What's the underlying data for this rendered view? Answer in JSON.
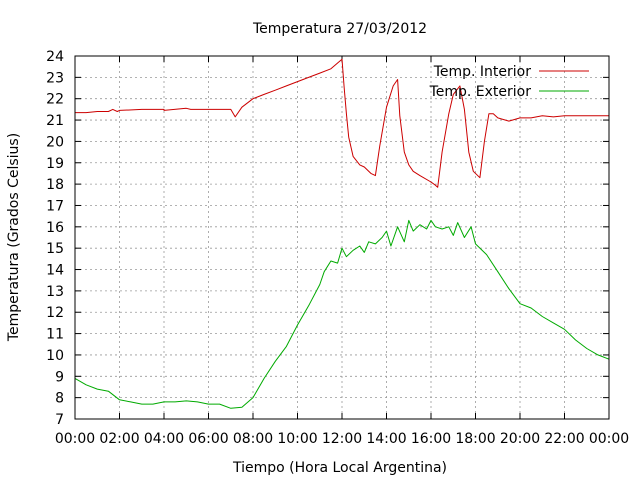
{
  "chart_data": {
    "type": "line",
    "title": "Temperatura 27/03/2012",
    "xlabel": "Tiempo (Hora Local Argentina)",
    "ylabel": "Temperatura (Grados Celsius)",
    "xlim": [
      0,
      24
    ],
    "ylim": [
      7,
      24
    ],
    "grid": true,
    "legend_position": "top-right",
    "x_tick_labels": [
      "00:00",
      "02:00",
      "04:00",
      "06:00",
      "08:00",
      "10:00",
      "12:00",
      "14:00",
      "16:00",
      "18:00",
      "20:00",
      "22:00",
      "00:00"
    ],
    "y_tick_labels": [
      "7",
      "8",
      "9",
      "10",
      "11",
      "12",
      "13",
      "14",
      "15",
      "16",
      "17",
      "18",
      "19",
      "20",
      "21",
      "22",
      "23",
      "24"
    ],
    "series": [
      {
        "name": "Temp. Interior",
        "color": "#cc0000",
        "x": [
          0,
          0.5,
          1,
          1.5,
          1.7,
          1.9,
          2,
          3,
          4,
          4,
          5,
          5.2,
          6,
          6.5,
          7,
          7.2,
          7.5,
          8,
          8.5,
          9,
          9.5,
          10,
          10.5,
          11,
          11.5,
          12,
          12.1,
          12.2,
          12.3,
          12.5,
          12.8,
          13,
          13.3,
          13.5,
          13.7,
          14,
          14.3,
          14.5,
          14.6,
          14.8,
          15,
          15.2,
          15.5,
          16,
          16.2,
          16.3,
          16.5,
          16.8,
          17,
          17.3,
          17.5,
          17.7,
          17.9,
          18.2,
          18.4,
          18.6,
          18.8,
          19,
          19.5,
          20,
          20.5,
          21,
          21.5,
          22,
          22.5,
          23,
          23.5,
          24
        ],
        "y": [
          21.35,
          21.35,
          21.4,
          21.4,
          21.5,
          21.4,
          21.45,
          21.5,
          21.5,
          21.45,
          21.55,
          21.5,
          21.5,
          21.5,
          21.5,
          21.15,
          21.6,
          22,
          22.2,
          22.4,
          22.6,
          22.8,
          23.0,
          23.2,
          23.4,
          23.85,
          22.5,
          21.3,
          20.2,
          19.3,
          18.9,
          18.8,
          18.5,
          18.4,
          19.8,
          21.6,
          22.6,
          22.9,
          21.2,
          19.5,
          18.9,
          18.6,
          18.4,
          18.1,
          17.95,
          17.85,
          19.5,
          21.3,
          22.2,
          22.6,
          21.5,
          19.5,
          18.6,
          18.3,
          20,
          21.3,
          21.3,
          21.1,
          20.95,
          21.1,
          21.1,
          21.2,
          21.15,
          21.2,
          21.2,
          21.2,
          21.2,
          21.2
        ]
      },
      {
        "name": "Temp. Exterior",
        "color": "#00aa00",
        "x": [
          0,
          0.5,
          1,
          1.5,
          2,
          2.5,
          3,
          3.5,
          4,
          4.5,
          5,
          5.5,
          6,
          6.5,
          7,
          7.5,
          8,
          8.5,
          9,
          9.5,
          10,
          10.5,
          11,
          11.2,
          11.5,
          11.8,
          12,
          12.2,
          12.5,
          12.8,
          13,
          13.2,
          13.5,
          13.8,
          14,
          14.2,
          14.5,
          14.8,
          15,
          15.2,
          15.5,
          15.8,
          16,
          16.2,
          16.5,
          16.8,
          17,
          17.2,
          17.5,
          17.8,
          18,
          18.5,
          19,
          19.5,
          20,
          20.5,
          21,
          21.5,
          22,
          22.5,
          23,
          23.5,
          24
        ],
        "y": [
          8.9,
          8.6,
          8.4,
          8.3,
          7.9,
          7.8,
          7.7,
          7.7,
          7.8,
          7.8,
          7.85,
          7.8,
          7.7,
          7.7,
          7.5,
          7.55,
          8.0,
          8.9,
          9.7,
          10.4,
          11.4,
          12.3,
          13.3,
          13.9,
          14.4,
          14.3,
          15.0,
          14.6,
          14.9,
          15.1,
          14.8,
          15.3,
          15.2,
          15.5,
          15.8,
          15.1,
          16.0,
          15.3,
          16.3,
          15.8,
          16.1,
          15.9,
          16.3,
          16.0,
          15.9,
          16.0,
          15.6,
          16.2,
          15.5,
          16.0,
          15.2,
          14.7,
          13.9,
          13.1,
          12.4,
          12.2,
          11.8,
          11.5,
          11.2,
          10.7,
          10.3,
          10.0,
          9.8
        ]
      }
    ]
  }
}
